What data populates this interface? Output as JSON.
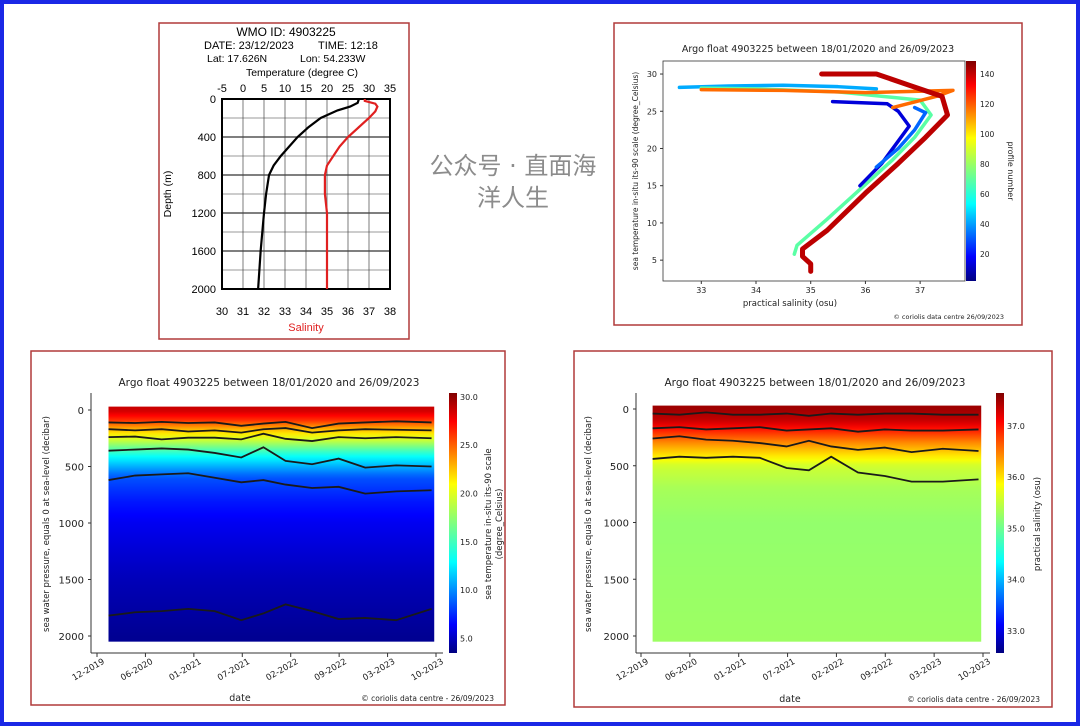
{
  "watermark": "公众号 · 直面海洋人生",
  "colors": {
    "outer_border": "#1a28e6",
    "panel_border": "#b03a3a",
    "salinity_line": "#e02020",
    "temperature_line": "#000000"
  },
  "chart_data": [
    {
      "type": "line",
      "title": "WMO ID: 4903225",
      "date": "DATE: 23/12/2023",
      "time": "TIME: 12:18",
      "lat": "Lat: 17.626N",
      "lon": "Lon: 54.233W",
      "xlabel_top": "Temperature (degree C)",
      "xlabel_bottom": "Salinity",
      "ylabel": "Depth (m)",
      "temp_ticks": [
        -5,
        0,
        5,
        10,
        15,
        20,
        25,
        30,
        35
      ],
      "sal_ticks": [
        30,
        31,
        32,
        33,
        34,
        35,
        36,
        37,
        38
      ],
      "depth_ticks": [
        0,
        400,
        800,
        1200,
        1600,
        2000
      ],
      "xlim_temp": [
        -5,
        35
      ],
      "xlim_sal": [
        30,
        38
      ],
      "ylim": [
        2000,
        0
      ],
      "grid": true,
      "series": [
        {
          "name": "Temperature",
          "axis": "temp",
          "color": "#000000",
          "depth": [
            0,
            40,
            80,
            120,
            200,
            300,
            400,
            500,
            600,
            700,
            800,
            1000,
            1200,
            1600,
            2000
          ],
          "values": [
            27.6,
            27.3,
            25.5,
            22.5,
            18.5,
            15.5,
            13,
            11,
            9,
            7.3,
            6.2,
            5.5,
            5.0,
            4.2,
            3.6
          ]
        },
        {
          "name": "Salinity",
          "axis": "sal",
          "color": "#e02020",
          "depth": [
            0,
            20,
            50,
            80,
            130,
            200,
            300,
            400,
            500,
            600,
            700,
            800,
            1000,
            1200,
            1600,
            2000
          ],
          "values": [
            36.8,
            36.8,
            37.3,
            37.4,
            37.3,
            37.0,
            36.5,
            36.0,
            35.6,
            35.3,
            35.0,
            34.9,
            34.9,
            35.0,
            35.0,
            35.0
          ]
        }
      ]
    },
    {
      "type": "scatter",
      "title": "Argo float 4903225 between 18/01/2020 and 26/09/2023",
      "xlabel": "practical salinity (osu)",
      "ylabel": "sea temperature in-situ its-90 scale (degree_Celsius)",
      "colorbar_label": "profile number",
      "colorbar_ticks": [
        20,
        40,
        60,
        80,
        100,
        120,
        140
      ],
      "colorbar_range": [
        2,
        148.7
      ],
      "xticks": [
        33,
        34,
        35,
        36,
        37
      ],
      "yticks": [
        5,
        10,
        15,
        20,
        25,
        30
      ],
      "xlim": [
        32.3,
        37.82
      ],
      "ylim": [
        2.2,
        31.75
      ],
      "credit": "© coriolis data centre   26/09/2023",
      "series": [
        {
          "profile": 45,
          "salinity": [
            32.6,
            33.5,
            34.5,
            35.5,
            36.2
          ],
          "temperature": [
            28.2,
            28.4,
            28.5,
            28.3,
            28.0
          ]
        },
        {
          "profile": 70,
          "salinity": [
            34.7,
            34.75,
            35.3,
            35.9,
            36.5,
            36.9,
            37.2,
            37.0,
            35.5,
            34.0,
            33.0
          ],
          "temperature": [
            5.8,
            7.0,
            10.5,
            14.5,
            18.5,
            21.5,
            24.5,
            26.5,
            27.6,
            28.0,
            28.1
          ]
        },
        {
          "profile": 15,
          "salinity": [
            35.9,
            36.3,
            36.6,
            36.8,
            36.6,
            36.4,
            35.4
          ],
          "temperature": [
            15,
            18,
            21,
            23,
            25,
            26,
            26.3
          ]
        },
        {
          "profile": 35,
          "salinity": [
            36.2,
            36.6,
            36.9,
            37.1,
            36.9
          ],
          "temperature": [
            17.5,
            20,
            22.5,
            24.8,
            25.5
          ]
        },
        {
          "profile": 115,
          "salinity": [
            33.0,
            34.5,
            36.0,
            37.6,
            37.3,
            36.5
          ],
          "temperature": [
            27.9,
            27.8,
            27.5,
            27.8,
            27.0,
            25.5
          ]
        },
        {
          "profile": 140,
          "salinity": [
            35.0,
            35.0,
            34.85,
            34.85,
            35.3,
            36.0,
            36.6,
            37.1,
            37.5,
            37.4,
            36.8,
            36.2,
            35.2
          ],
          "temperature": [
            3.5,
            4.5,
            5.5,
            6.5,
            9,
            14,
            18,
            21.5,
            24.5,
            27,
            28.5,
            30,
            30
          ]
        }
      ]
    },
    {
      "type": "heatmap",
      "title": "Argo float 4903225 between 18/01/2020 and 26/09/2023",
      "xlabel": "date",
      "ylabel": "sea water pressure, equals 0 at sea-level (decibar)",
      "colorbar_label_1": "sea temperature in-situ its-90 scale",
      "colorbar_label_2": "(degree_Celsius)",
      "colorbar_ticks": [
        "5.0",
        "10.0",
        "15.0",
        "20.0",
        "25.0",
        "30.0"
      ],
      "colorbar_range": [
        3.5,
        30.4
      ],
      "xticks": [
        "12-2019",
        "06-2020",
        "01-2021",
        "07-2021",
        "02-2022",
        "09-2022",
        "03-2023",
        "10-2023"
      ],
      "xlim": [
        2019.92,
        2023.75
      ],
      "data_range": [
        2020.05,
        2023.73
      ],
      "yticks": [
        0,
        500,
        1000,
        1500,
        2000
      ],
      "ylim": [
        2100,
        -50
      ],
      "credit": "© coriolis data centre - 26/09/2023",
      "mean_profile": {
        "pressure": [
          0,
          50,
          100,
          150,
          250,
          400,
          600,
          800,
          1000,
          1500,
          2000
        ],
        "values": [
          28.5,
          27,
          25.5,
          23,
          19.5,
          14,
          9,
          7.5,
          6.5,
          5,
          4
        ]
      },
      "contour_dates": [
        2020.05,
        2020.35,
        2020.65,
        2020.95,
        2021.25,
        2021.55,
        2021.8,
        2022.05,
        2022.35,
        2022.65,
        2022.95,
        2023.3,
        2023.7
      ],
      "contours": [
        {
          "level": 25,
          "pressure": [
            110,
            115,
            105,
            115,
            110,
            140,
            120,
            105,
            160,
            120,
            110,
            100,
            110
          ]
        },
        {
          "level": 22,
          "pressure": [
            170,
            180,
            170,
            190,
            180,
            200,
            170,
            160,
            200,
            180,
            170,
            175,
            180
          ]
        },
        {
          "level": 20,
          "pressure": [
            240,
            235,
            260,
            245,
            245,
            260,
            210,
            255,
            275,
            240,
            250,
            240,
            250
          ]
        },
        {
          "level": 15,
          "pressure": [
            360,
            350,
            340,
            350,
            380,
            420,
            330,
            450,
            480,
            430,
            510,
            490,
            500
          ]
        },
        {
          "level": 10,
          "pressure": [
            620,
            580,
            570,
            560,
            600,
            640,
            620,
            660,
            690,
            680,
            740,
            720,
            710
          ]
        },
        {
          "level": 5,
          "pressure": [
            1820,
            1790,
            1780,
            1760,
            1780,
            1860,
            1800,
            1720,
            1780,
            1850,
            1840,
            1860,
            1760
          ]
        }
      ]
    },
    {
      "type": "heatmap",
      "title": "Argo float 4903225 between 18/01/2020 and 26/09/2023",
      "xlabel": "date",
      "ylabel": "sea water pressure, equals 0 at sea-level (decibar)",
      "colorbar_label_1": "practical salinity (osu)",
      "colorbar_ticks": [
        "33.0",
        "34.0",
        "35.0",
        "36.0",
        "37.0"
      ],
      "colorbar_range": [
        32.57,
        37.64
      ],
      "xticks": [
        "12-2019",
        "06-2020",
        "01-2021",
        "07-2021",
        "02-2022",
        "09-2022",
        "03-2023",
        "10-2023"
      ],
      "xlim": [
        2019.92,
        2023.75
      ],
      "data_range": [
        2020.05,
        2023.73
      ],
      "yticks": [
        0,
        500,
        1000,
        1500,
        2000
      ],
      "ylim": [
        2100,
        -50
      ],
      "credit": "© coriolis data centre - 26/09/2023",
      "mean_profile": {
        "pressure": [
          0,
          100,
          200,
          300,
          400,
          500,
          700,
          1000,
          2000
        ],
        "values": [
          37.5,
          37.3,
          36.8,
          36.3,
          35.9,
          35.5,
          35.3,
          35.2,
          35.25
        ]
      },
      "contour_dates": [
        2020.05,
        2020.35,
        2020.65,
        2020.95,
        2021.25,
        2021.55,
        2021.8,
        2022.05,
        2022.35,
        2022.65,
        2022.95,
        2023.3,
        2023.7
      ],
      "contours": [
        {
          "level": 37.2,
          "pressure": [
            40,
            50,
            30,
            50,
            50,
            40,
            60,
            40,
            50,
            40,
            40,
            50,
            50
          ]
        },
        {
          "level": 36.8,
          "pressure": [
            170,
            160,
            180,
            170,
            160,
            190,
            180,
            170,
            200,
            180,
            190,
            190,
            180
          ]
        },
        {
          "level": 36.3,
          "pressure": [
            260,
            240,
            270,
            280,
            300,
            330,
            280,
            330,
            360,
            340,
            380,
            350,
            370
          ]
        },
        {
          "level": 35.6,
          "pressure": [
            440,
            420,
            430,
            420,
            430,
            520,
            540,
            420,
            560,
            590,
            640,
            640,
            620
          ]
        }
      ]
    }
  ]
}
